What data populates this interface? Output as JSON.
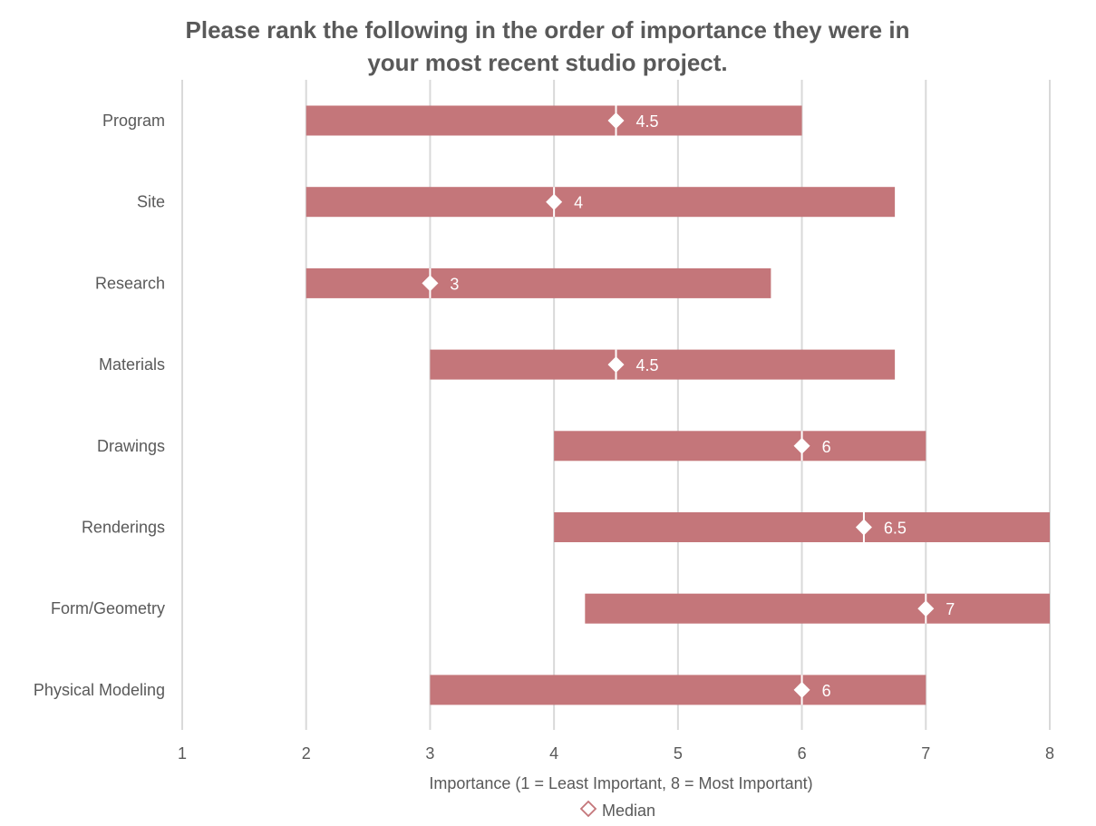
{
  "chart_data": {
    "type": "bar",
    "subtype": "floating-range-with-median",
    "title_lines": [
      "Please rank the following in the order of importance they were in",
      "your most recent studio project."
    ],
    "xlabel": "Importance (1 = Least Important, 8 = Most Important)",
    "xlim": [
      1,
      8
    ],
    "xticks": [
      "1",
      "2",
      "3",
      "4",
      "5",
      "6",
      "7",
      "8"
    ],
    "grid": "vertical",
    "legend": {
      "position": "bottom",
      "entries": [
        "Median"
      ]
    },
    "colors": {
      "bar": "#C4767A",
      "median_marker": "#FFFFFF",
      "legend_marker": "#C4767A",
      "text": "#595959",
      "grid": "#D9D9D9"
    },
    "categories": [
      "Program",
      "Site",
      "Research",
      "Materials",
      "Drawings",
      "Renderings",
      "Form/Geometry",
      "Physical Modeling"
    ],
    "ranges": [
      [
        2,
        6
      ],
      [
        2,
        6.75
      ],
      [
        2,
        5.75
      ],
      [
        3,
        6.75
      ],
      [
        4,
        7
      ],
      [
        4,
        8
      ],
      [
        4.25,
        8
      ],
      [
        3,
        7
      ]
    ],
    "medians": [
      4.5,
      4,
      3,
      4.5,
      6,
      6.5,
      7,
      6
    ],
    "median_labels": [
      "4.5",
      "4",
      "3",
      "4.5",
      "6",
      "6.5",
      "7",
      "6"
    ]
  }
}
